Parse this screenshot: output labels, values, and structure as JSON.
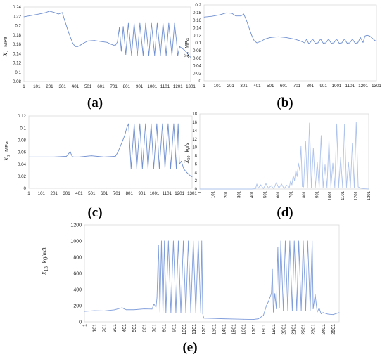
{
  "chart_data": [
    {
      "id": "a",
      "type": "line",
      "caption": "(a)",
      "ylabel_var": "X",
      "ylabel_sub": "2",
      "ylabel_unit": "MPa",
      "ylim": [
        0.08,
        0.24
      ],
      "yticks": [
        0.08,
        0.1,
        0.12,
        0.14,
        0.16,
        0.18,
        0.2,
        0.22,
        0.24
      ],
      "ytick_labels": [
        "0.08",
        "0.1",
        "0.12",
        "0.14",
        "0.16",
        "0.18",
        "0.2",
        "0.22",
        "0.24"
      ],
      "xlim": [
        1,
        1301
      ],
      "xticks": [
        1,
        101,
        201,
        301,
        401,
        501,
        601,
        701,
        801,
        901,
        1001,
        1101,
        1201,
        1301
      ],
      "xtick_labels": [
        "1",
        "101",
        "201",
        "301",
        "401",
        "501",
        "601",
        "701",
        "801",
        "901",
        "1001",
        "1101",
        "1201",
        "1301"
      ],
      "series": [
        {
          "color": "#6f8fd0",
          "x": [
            1,
            60,
            120,
            170,
            200,
            230,
            270,
            300,
            320,
            350,
            380,
            400,
            420,
            440,
            470,
            500,
            550,
            600,
            650,
            680,
            700,
            715,
            730,
            745,
            760,
            775,
            795,
            815,
            840,
            860,
            885,
            905,
            930,
            950,
            975,
            995,
            1020,
            1040,
            1065,
            1085,
            1110,
            1130,
            1155,
            1175,
            1190,
            1200,
            1215,
            1230,
            1250,
            1270,
            1290,
            1301
          ],
          "y": [
            0.219,
            0.222,
            0.225,
            0.228,
            0.231,
            0.229,
            0.225,
            0.228,
            0.21,
            0.185,
            0.163,
            0.155,
            0.155,
            0.158,
            0.163,
            0.167,
            0.168,
            0.166,
            0.164,
            0.16,
            0.158,
            0.158,
            0.165,
            0.196,
            0.145,
            0.198,
            0.138,
            0.205,
            0.136,
            0.205,
            0.136,
            0.205,
            0.136,
            0.205,
            0.136,
            0.205,
            0.136,
            0.205,
            0.136,
            0.205,
            0.136,
            0.205,
            0.136,
            0.205,
            0.168,
            0.135,
            0.155,
            0.152,
            0.148,
            0.142,
            0.135,
            0.132
          ]
        }
      ]
    },
    {
      "id": "b",
      "type": "line",
      "caption": "(b)",
      "ylabel_var": "X",
      "ylabel_sub": "7",
      "ylabel_unit": "MPa",
      "ylim": [
        0,
        0.2
      ],
      "yticks": [
        0,
        0.02,
        0.04,
        0.06,
        0.08,
        0.1,
        0.12,
        0.14,
        0.16,
        0.18,
        0.2
      ],
      "ytick_labels": [
        "0",
        "0.02",
        "0.04",
        "0.06",
        "0.08",
        "0.1",
        "0.12",
        "0.14",
        "0.16",
        "0.18",
        "0.2"
      ],
      "xlim": [
        1,
        1301
      ],
      "xticks": [
        1,
        101,
        201,
        301,
        401,
        501,
        601,
        701,
        801,
        901,
        1001,
        1101,
        1201,
        1301
      ],
      "xtick_labels": [
        "1",
        "101",
        "201",
        "301",
        "401",
        "501",
        "601",
        "701",
        "801",
        "901",
        "1001",
        "1101",
        "1201",
        "1301"
      ],
      "series": [
        {
          "color": "#6f8fd0",
          "x": [
            1,
            60,
            120,
            170,
            210,
            240,
            280,
            300,
            320,
            340,
            360,
            380,
            400,
            430,
            460,
            500,
            560,
            620,
            680,
            720,
            760,
            775,
            790,
            800,
            820,
            840,
            860,
            880,
            900,
            920,
            940,
            960,
            980,
            1000,
            1020,
            1040,
            1060,
            1080,
            1100,
            1120,
            1140,
            1160,
            1180,
            1200,
            1215,
            1230,
            1250,
            1270,
            1290,
            1301
          ],
          "y": [
            0.168,
            0.17,
            0.174,
            0.179,
            0.178,
            0.171,
            0.171,
            0.176,
            0.16,
            0.14,
            0.12,
            0.105,
            0.1,
            0.104,
            0.11,
            0.114,
            0.116,
            0.114,
            0.11,
            0.106,
            0.1,
            0.11,
            0.098,
            0.1,
            0.11,
            0.099,
            0.1,
            0.11,
            0.099,
            0.1,
            0.11,
            0.099,
            0.1,
            0.11,
            0.099,
            0.1,
            0.11,
            0.099,
            0.1,
            0.11,
            0.099,
            0.1,
            0.114,
            0.101,
            0.118,
            0.12,
            0.118,
            0.112,
            0.106,
            0.105
          ]
        }
      ]
    },
    {
      "id": "c",
      "type": "line",
      "caption": "(c)",
      "ylabel_var": "X",
      "ylabel_sub": "8",
      "ylabel_unit": "MPa",
      "ylim": [
        0,
        0.12
      ],
      "yticks": [
        0,
        0.02,
        0.04,
        0.06,
        0.08,
        0.1,
        0.12
      ],
      "ytick_labels": [
        "0",
        "0.02",
        "0.04",
        "0.06",
        "0.08",
        "0.1",
        "0.12"
      ],
      "xlim": [
        1,
        1301
      ],
      "xticks": [
        1,
        101,
        201,
        301,
        401,
        501,
        601,
        701,
        801,
        901,
        1001,
        1101,
        1201,
        1301
      ],
      "xtick_labels": [
        "1",
        "101",
        "201",
        "301",
        "401",
        "501",
        "601",
        "701",
        "801",
        "901",
        "1001",
        "1101",
        "1201",
        "1301"
      ],
      "series": [
        {
          "color": "#6f8fd0",
          "x": [
            1,
            100,
            200,
            300,
            320,
            330,
            345,
            360,
            400,
            500,
            600,
            690,
            710,
            730,
            750,
            765,
            780,
            795,
            815,
            840,
            860,
            885,
            905,
            930,
            950,
            975,
            995,
            1020,
            1040,
            1065,
            1085,
            1110,
            1130,
            1155,
            1175,
            1190,
            1200,
            1215,
            1235,
            1260,
            1280,
            1301
          ],
          "y": [
            0.052,
            0.052,
            0.052,
            0.053,
            0.058,
            0.061,
            0.053,
            0.052,
            0.052,
            0.054,
            0.052,
            0.053,
            0.06,
            0.07,
            0.08,
            0.088,
            0.1,
            0.107,
            0.033,
            0.107,
            0.033,
            0.107,
            0.033,
            0.107,
            0.033,
            0.107,
            0.033,
            0.107,
            0.033,
            0.107,
            0.033,
            0.107,
            0.033,
            0.107,
            0.033,
            0.107,
            0.04,
            0.045,
            0.032,
            0.026,
            0.022,
            0.019
          ]
        }
      ]
    },
    {
      "id": "d",
      "type": "line",
      "caption": "(d)",
      "ylabel_var": "X",
      "ylabel_sub": "10",
      "ylabel_unit": "kg/s",
      "ylim": [
        0,
        18
      ],
      "yticks": [
        0,
        2,
        4,
        6,
        8,
        10,
        12,
        14,
        16,
        18
      ],
      "ytick_labels": [
        "0",
        "2",
        "4",
        "6",
        "8",
        "10",
        "12",
        "14",
        "16",
        "18"
      ],
      "xlim": [
        1,
        1301
      ],
      "xticks": [
        1,
        101,
        201,
        301,
        401,
        501,
        601,
        701,
        801,
        901,
        1001,
        1101,
        1201,
        1301
      ],
      "xtick_labels": [
        "1",
        "101",
        "201",
        "301",
        "401",
        "501",
        "601",
        "701",
        "801",
        "901",
        "1001",
        "1101",
        "1201",
        "1301"
      ],
      "series": [
        {
          "color": "#aec3ec",
          "x": [
            1,
            400,
            430,
            440,
            450,
            470,
            490,
            510,
            530,
            550,
            570,
            590,
            610,
            630,
            650,
            670,
            690,
            700,
            710,
            720,
            730,
            740,
            750,
            760,
            770,
            780,
            790,
            800,
            815,
            830,
            845,
            860,
            875,
            890,
            905,
            920,
            935,
            950,
            965,
            980,
            995,
            1010,
            1025,
            1040,
            1055,
            1070,
            1085,
            1100,
            1115,
            1130,
            1145,
            1160,
            1175,
            1190,
            1205,
            1220,
            1240,
            1260,
            1301
          ],
          "y": [
            0,
            0,
            0.1,
            1.2,
            0.2,
            1.0,
            0.1,
            1.3,
            0.2,
            0.8,
            0.1,
            1.5,
            0.2,
            1.2,
            0.1,
            0.9,
            0.4,
            2.0,
            1.0,
            3.2,
            2.0,
            4.5,
            3.0,
            6.2,
            4.5,
            10.2,
            0.6,
            0.5,
            11.5,
            0.4,
            15.8,
            0.4,
            9.8,
            0.4,
            6.5,
            0.4,
            12.8,
            0.4,
            5.8,
            0.4,
            11.8,
            0.4,
            6.2,
            0.4,
            15.6,
            0.4,
            7.5,
            0.4,
            15.5,
            0.4,
            6.5,
            0.4,
            11.0,
            0.4,
            16.0,
            0.5,
            0.2,
            0.1,
            0
          ]
        }
      ]
    },
    {
      "id": "e",
      "type": "line",
      "caption": "(e)",
      "ylabel_var": "X",
      "ylabel_sub": "13",
      "ylabel_unit": "kg/m3",
      "ylim": [
        0,
        1200
      ],
      "yticks": [
        0,
        200,
        400,
        600,
        800,
        1000,
        1200
      ],
      "ytick_labels": [
        "0",
        "200",
        "400",
        "600",
        "800",
        "1000",
        "1200"
      ],
      "xlim": [
        1,
        2561
      ],
      "xticks": [
        1,
        101,
        201,
        301,
        401,
        501,
        601,
        701,
        801,
        901,
        1001,
        1101,
        1201,
        1301,
        1401,
        1501,
        1601,
        1701,
        1801,
        1901,
        2001,
        2101,
        2201,
        2301,
        2401,
        2501
      ],
      "xtick_labels": [
        "1",
        "101",
        "201",
        "301",
        "401",
        "501",
        "601",
        "701",
        "801",
        "901",
        "1001",
        "1101",
        "1201",
        "1301",
        "1401",
        "1501",
        "1601",
        "1701",
        "1801",
        "1901",
        "2001",
        "2101",
        "2201",
        "2301",
        "2401",
        "2501"
      ],
      "series": [
        {
          "color": "#7f9ddb",
          "x": [
            1,
            100,
            200,
            300,
            380,
            400,
            420,
            500,
            600,
            680,
            700,
            720,
            730,
            745,
            760,
            775,
            790,
            805,
            820,
            845,
            870,
            895,
            920,
            945,
            970,
            995,
            1020,
            1045,
            1070,
            1095,
            1120,
            1145,
            1170,
            1180,
            1190,
            1201,
            1300,
            1400,
            1500,
            1600,
            1700,
            1750,
            1800,
            1830,
            1850,
            1865,
            1880,
            1890,
            1900,
            1915,
            1930,
            1945,
            1960,
            1975,
            2000,
            2020,
            2045,
            2065,
            2090,
            2110,
            2135,
            2155,
            2180,
            2200,
            2225,
            2245,
            2270,
            2290,
            2300,
            2320,
            2340,
            2360,
            2380,
            2400,
            2450,
            2500,
            2561
          ],
          "y": [
            130,
            138,
            135,
            148,
            175,
            160,
            150,
            150,
            160,
            158,
            220,
            180,
            300,
            950,
            120,
            1000,
            110,
            1000,
            110,
            1000,
            110,
            1000,
            110,
            1000,
            110,
            1000,
            110,
            1000,
            110,
            1000,
            110,
            1000,
            110,
            1000,
            100,
            45,
            42,
            38,
            35,
            32,
            30,
            38,
            80,
            200,
            250,
            300,
            350,
            650,
            120,
            350,
            160,
            920,
            170,
            1000,
            140,
            1000,
            140,
            1000,
            140,
            1000,
            140,
            1000,
            140,
            1000,
            140,
            1000,
            140,
            1000,
            160,
            340,
            120,
            170,
            100,
            115,
            95,
            90,
            115
          ]
        }
      ]
    }
  ]
}
